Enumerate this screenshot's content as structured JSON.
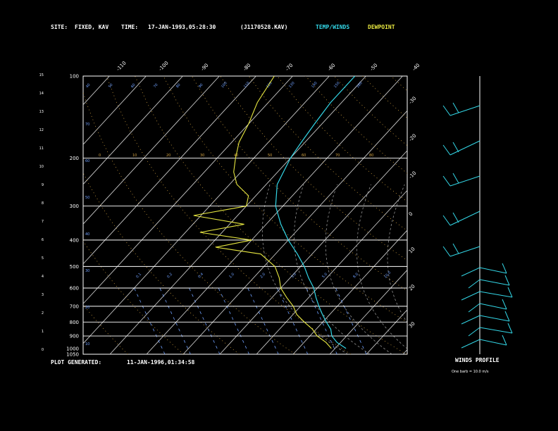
{
  "header": {
    "site_label": "SITE:",
    "site_value": "FIXED, KAV",
    "time_label": "TIME:",
    "time_value": "17-JAN-1993,05:28:30",
    "file_value": "(J1170528.KAV)",
    "temp_winds": "TEMP/WINDS",
    "dewpoint": "DEWPOINT"
  },
  "footer": {
    "generated_label": "PLOT GENERATED:",
    "generated_value": "11-JAN-1996,01:34:58",
    "winds_profile": "WINDS PROFILE",
    "barb_note": "One barb = 10.0 m/s"
  },
  "colors": {
    "temperature": "#33d6e6",
    "dewpoint": "#e6e640",
    "isotherm": "#c8c8c8",
    "dry_adiabat": "#d0a040",
    "moist_adiabat": "#909090",
    "mixing_ratio": "#6fa0ff",
    "wind": "#33d6e6"
  },
  "chart_data": {
    "type": "line",
    "chart_kind": "skew-T log-P diagram",
    "grid": true,
    "y_left_height_km": [
      "0",
      "1",
      "2",
      "3",
      "4",
      "5",
      "6",
      "7",
      "8",
      "9",
      "10",
      "11",
      "12",
      "13",
      "14",
      "15"
    ],
    "pressure_labels_hpa": [
      "100",
      "200",
      "300",
      "400",
      "500",
      "600",
      "700",
      "800",
      "900",
      "1000",
      "1050"
    ],
    "top_temp_labels_c": [
      "-110",
      "-100",
      "-90",
      "-80",
      "-70",
      "-60",
      "-50",
      "-40"
    ],
    "right_temp_labels_c": [
      "-30",
      "-20",
      "-10",
      "0",
      "10",
      "20",
      "30"
    ],
    "adiabat_labels_k": [
      "40",
      "50",
      "60",
      "70",
      "80",
      "90",
      "100",
      "110",
      "120",
      "130",
      "140",
      "150",
      "160"
    ],
    "dry_adiabat_labels": [
      "0",
      "10",
      "20",
      "30",
      "40",
      "50",
      "60",
      "70",
      "80"
    ],
    "mixing_ratio_labels": [
      "0.1",
      "0.2",
      "0.4",
      "1.0",
      "2.0",
      "3.0",
      "5.0",
      "8.0",
      "10.0"
    ],
    "mixing_ratio_side_labels": [
      "10",
      "20",
      "30",
      "40",
      "50",
      "60",
      "70"
    ],
    "series": [
      {
        "name": "TEMP/WINDS",
        "pressure_hpa": [
          1000,
          950,
          900,
          850,
          800,
          750,
          700,
          650,
          600,
          550,
          500,
          450,
          400,
          350,
          300,
          250,
          200,
          175,
          150,
          125,
          100
        ],
        "temperature_c": [
          3,
          -1,
          -4,
          -6,
          -9,
          -12,
          -15,
          -18,
          -21,
          -25,
          -29,
          -34,
          -40,
          -46,
          -52,
          -57,
          -60,
          -61,
          -62,
          -63,
          -63
        ]
      },
      {
        "name": "DEWPOINT",
        "pressure_hpa": [
          1000,
          950,
          900,
          850,
          800,
          750,
          700,
          650,
          600,
          550,
          500,
          450,
          425,
          400,
          375,
          350,
          325,
          300,
          275,
          250,
          225,
          200,
          175,
          150,
          125,
          100
        ],
        "dewpoint_c": [
          -1,
          -4,
          -8,
          -11,
          -15,
          -19,
          -22,
          -26,
          -30,
          -33,
          -37,
          -44,
          -58,
          -50,
          -66,
          -56,
          -72,
          -60,
          -62,
          -68,
          -72,
          -75,
          -78,
          -80,
          -83,
          -85
        ]
      }
    ],
    "wind_profile_barbs_upper": 5,
    "wind_profile_barbs_lower": 7
  }
}
